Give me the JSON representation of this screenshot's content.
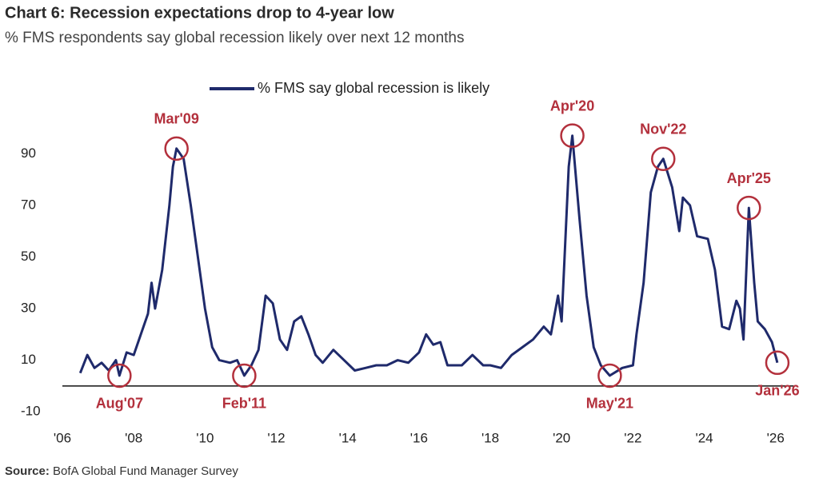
{
  "chart_data": {
    "type": "line",
    "title": "Chart 6: Recession expectations drop to 4-year low",
    "subtitle": "% FMS respondents say global recession likely over next 12 months",
    "source_label": "Source:",
    "source": "BofA Global Fund Manager Survey",
    "xlim": [
      2006,
      2026.5
    ],
    "ylim": [
      -12,
      100
    ],
    "xticks": [
      {
        "value": 2006,
        "label": "'06"
      },
      {
        "value": 2008,
        "label": "'08"
      },
      {
        "value": 2010,
        "label": "'10"
      },
      {
        "value": 2012,
        "label": "'12"
      },
      {
        "value": 2014,
        "label": "'14"
      },
      {
        "value": 2016,
        "label": "'16"
      },
      {
        "value": 2018,
        "label": "'18"
      },
      {
        "value": 2020,
        "label": "'20"
      },
      {
        "value": 2022,
        "label": "'22"
      },
      {
        "value": 2024,
        "label": "'24"
      },
      {
        "value": 2026,
        "label": "'26"
      }
    ],
    "yticks": [
      -10,
      10,
      30,
      50,
      70,
      90
    ],
    "grid": false,
    "legend": "top",
    "x": [
      2006.5,
      2006.7,
      2006.9,
      2007.1,
      2007.3,
      2007.5,
      2007.6,
      2007.8,
      2008.0,
      2008.2,
      2008.4,
      2008.5,
      2008.6,
      2008.8,
      2009.0,
      2009.1,
      2009.2,
      2009.4,
      2009.6,
      2009.8,
      2010.0,
      2010.2,
      2010.4,
      2010.7,
      2010.9,
      2011.1,
      2011.3,
      2011.5,
      2011.7,
      2011.9,
      2012.1,
      2012.3,
      2012.5,
      2012.7,
      2012.9,
      2013.1,
      2013.3,
      2013.6,
      2013.9,
      2014.2,
      2014.5,
      2014.8,
      2015.1,
      2015.4,
      2015.7,
      2016.0,
      2016.2,
      2016.4,
      2016.6,
      2016.8,
      2017.2,
      2017.5,
      2017.8,
      2018.0,
      2018.3,
      2018.6,
      2018.9,
      2019.2,
      2019.5,
      2019.7,
      2019.9,
      2020.0,
      2020.2,
      2020.3,
      2020.5,
      2020.7,
      2020.9,
      2021.1,
      2021.35,
      2021.7,
      2022.0,
      2022.1,
      2022.3,
      2022.5,
      2022.7,
      2022.85,
      2023.1,
      2023.3,
      2023.4,
      2023.6,
      2023.8,
      2024.1,
      2024.3,
      2024.5,
      2024.7,
      2024.9,
      2025.0,
      2025.1,
      2025.25,
      2025.4,
      2025.5,
      2025.7,
      2025.9,
      2026.05
    ],
    "series": [
      {
        "name": "% FMS say global recession is likely",
        "color": "#1f2a6b",
        "values": [
          5,
          12,
          7,
          9,
          6,
          10,
          4,
          13,
          12,
          20,
          28,
          40,
          30,
          45,
          70,
          85,
          92,
          88,
          70,
          50,
          30,
          15,
          10,
          9,
          10,
          4,
          8,
          14,
          35,
          32,
          18,
          14,
          25,
          27,
          20,
          12,
          9,
          14,
          10,
          6,
          7,
          8,
          8,
          10,
          9,
          13,
          20,
          16,
          17,
          8,
          8,
          12,
          8,
          8,
          7,
          12,
          15,
          18,
          23,
          20,
          35,
          25,
          85,
          97,
          65,
          35,
          15,
          8,
          4,
          7,
          8,
          20,
          40,
          75,
          85,
          88,
          77,
          60,
          73,
          70,
          58,
          57,
          45,
          23,
          22,
          33,
          30,
          18,
          69,
          40,
          25,
          22,
          17,
          9
        ]
      }
    ],
    "annotation_color": "#b3303c",
    "annotations": [
      {
        "label": "Aug'07",
        "x": 2007.6,
        "y": 4,
        "label_position": "below"
      },
      {
        "label": "Mar'09",
        "x": 2009.2,
        "y": 92,
        "label_position": "above"
      },
      {
        "label": "Feb'11",
        "x": 2011.1,
        "y": 4,
        "label_position": "below"
      },
      {
        "label": "Apr'20",
        "x": 2020.3,
        "y": 97,
        "label_position": "above"
      },
      {
        "label": "May'21",
        "x": 2021.35,
        "y": 4,
        "label_position": "below"
      },
      {
        "label": "Nov'22",
        "x": 2022.85,
        "y": 88,
        "label_position": "above"
      },
      {
        "label": "Apr'25",
        "x": 2025.25,
        "y": 69,
        "label_position": "above"
      },
      {
        "label": "Jan'26",
        "x": 2026.05,
        "y": 9,
        "label_position": "below"
      }
    ]
  }
}
